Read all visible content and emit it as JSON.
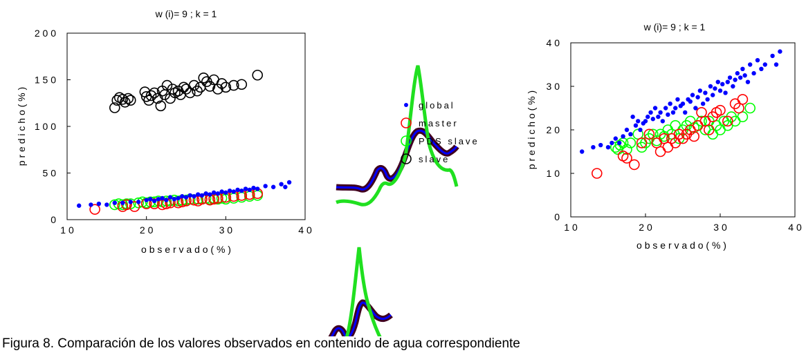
{
  "caption": "Figura 8. Comparación de los valores observados en contenido de agua correspondiente",
  "legend": [
    "global",
    "master",
    "PDS slave",
    "slave"
  ],
  "colors": {
    "global": "#0000ff",
    "master": "#ff0000",
    "pds": "#00ff00",
    "slave": "#000000",
    "spectra_dark": "#400020"
  },
  "chart_data": [
    {
      "type": "scatter",
      "title": "w (i)= 9 ;   k = 1",
      "xlabel": "o b s e r v a d o  ( % )",
      "ylabel": "p r e d i c h o  ( % )",
      "xlim": [
        10,
        40
      ],
      "ylim": [
        0,
        200
      ],
      "xticks": [
        "1 0",
        "2 0",
        "3 0",
        "4 0"
      ],
      "yticks": [
        "0",
        "5 0",
        "1 0 0",
        "1 5 0",
        "2 0 0"
      ],
      "series": [
        {
          "name": "global",
          "marker": "dot",
          "points": [
            [
              11.5,
              15
            ],
            [
              13,
              16
            ],
            [
              14,
              17
            ],
            [
              15,
              16
            ],
            [
              16,
              18
            ],
            [
              17,
              18
            ],
            [
              18,
              19
            ],
            [
              19,
              19
            ],
            [
              20,
              21
            ],
            [
              20.5,
              22
            ],
            [
              21,
              20
            ],
            [
              21.5,
              22
            ],
            [
              22,
              23
            ],
            [
              22.5,
              21
            ],
            [
              23,
              24
            ],
            [
              23.5,
              22
            ],
            [
              24,
              23
            ],
            [
              24.5,
              25
            ],
            [
              25,
              24
            ],
            [
              25.5,
              26
            ],
            [
              26,
              25
            ],
            [
              26.5,
              27
            ],
            [
              27,
              26
            ],
            [
              27.5,
              28
            ],
            [
              28,
              27
            ],
            [
              28.5,
              29
            ],
            [
              29,
              28
            ],
            [
              29.5,
              30
            ],
            [
              30,
              29
            ],
            [
              30.5,
              31
            ],
            [
              31,
              30
            ],
            [
              31.5,
              32
            ],
            [
              32,
              31
            ],
            [
              32.5,
              33
            ],
            [
              33,
              32
            ],
            [
              33.5,
              34
            ],
            [
              34,
              33
            ],
            [
              35,
              36
            ],
            [
              36,
              35
            ],
            [
              37,
              38
            ],
            [
              37.5,
              35
            ],
            [
              38,
              40
            ]
          ]
        },
        {
          "name": "master",
          "marker": "circle",
          "points": [
            [
              13.5,
              11
            ],
            [
              17,
              14
            ],
            [
              17.5,
              16
            ],
            [
              18.5,
              14
            ],
            [
              20,
              17
            ],
            [
              21,
              17
            ],
            [
              22,
              16
            ],
            [
              22.5,
              17
            ],
            [
              23,
              18
            ],
            [
              24,
              18
            ],
            [
              24.5,
              19
            ],
            [
              25,
              20
            ],
            [
              26,
              21
            ],
            [
              26.5,
              20
            ],
            [
              27,
              22
            ],
            [
              28,
              21
            ],
            [
              28.5,
              22
            ],
            [
              29,
              23
            ],
            [
              30,
              24
            ],
            [
              31,
              25
            ],
            [
              32,
              26
            ],
            [
              33,
              27
            ],
            [
              34,
              28
            ]
          ]
        },
        {
          "name": "PDS slave",
          "marker": "circle",
          "points": [
            [
              16,
              16
            ],
            [
              16.5,
              17
            ],
            [
              17,
              16
            ],
            [
              17.5,
              17
            ],
            [
              18,
              17
            ],
            [
              19,
              18
            ],
            [
              19.5,
              19
            ],
            [
              20,
              18
            ],
            [
              20.5,
              19
            ],
            [
              21,
              19
            ],
            [
              21.5,
              20
            ],
            [
              22,
              19
            ],
            [
              22.5,
              20
            ],
            [
              23,
              20
            ],
            [
              23.5,
              21
            ],
            [
              24,
              20
            ],
            [
              24.5,
              21
            ],
            [
              25,
              21
            ],
            [
              25.5,
              22
            ],
            [
              26,
              21
            ],
            [
              26.5,
              22
            ],
            [
              27,
              22
            ],
            [
              27.5,
              23
            ],
            [
              28,
              22
            ],
            [
              28.5,
              23
            ],
            [
              29,
              22
            ],
            [
              29.5,
              23
            ],
            [
              30,
              22
            ],
            [
              31,
              23
            ],
            [
              32,
              24
            ],
            [
              33,
              25
            ],
            [
              34,
              26
            ]
          ]
        },
        {
          "name": "slave",
          "marker": "circle",
          "points": [
            [
              16,
              120
            ],
            [
              16.3,
              128
            ],
            [
              16.6,
              131
            ],
            [
              17,
              129
            ],
            [
              17.3,
              126
            ],
            [
              17.7,
              130
            ],
            [
              18,
              128
            ],
            [
              19.8,
              137
            ],
            [
              20,
              132
            ],
            [
              20.3,
              128
            ],
            [
              20.6,
              133
            ],
            [
              21,
              136
            ],
            [
              21.4,
              130
            ],
            [
              21.8,
              122
            ],
            [
              22,
              138
            ],
            [
              22.3,
              134
            ],
            [
              22.6,
              144
            ],
            [
              23,
              130
            ],
            [
              23.3,
              140
            ],
            [
              23.6,
              136
            ],
            [
              24,
              138
            ],
            [
              24.3,
              134
            ],
            [
              24.7,
              142
            ],
            [
              25,
              140
            ],
            [
              25.5,
              136
            ],
            [
              26,
              144
            ],
            [
              26.4,
              138
            ],
            [
              26.8,
              142
            ],
            [
              27.2,
              152
            ],
            [
              27.6,
              148
            ],
            [
              28,
              143
            ],
            [
              28.5,
              150
            ],
            [
              29,
              140
            ],
            [
              29.5,
              146
            ],
            [
              30,
              142
            ],
            [
              31,
              144
            ],
            [
              32,
              145
            ],
            [
              34,
              155
            ]
          ]
        }
      ]
    },
    {
      "type": "scatter",
      "title": "w (i)= 9 ;   k = 1",
      "xlabel": "o b s e r v a d o  ( % )",
      "ylabel": "p r e d i c h o  ( % )",
      "xlim": [
        10,
        40
      ],
      "ylim": [
        0,
        40
      ],
      "xticks": [
        "1 0",
        "2 0",
        "3 0",
        "4 0"
      ],
      "yticks": [
        "0",
        "1 0",
        "2 0",
        "3 0",
        "4 0"
      ],
      "series": [
        {
          "name": "global",
          "marker": "dot",
          "points": [
            [
              11.5,
              15
            ],
            [
              13,
              16
            ],
            [
              14,
              16.5
            ],
            [
              15,
              16
            ],
            [
              15.5,
              17
            ],
            [
              16,
              18
            ],
            [
              16.5,
              17
            ],
            [
              17,
              18.5
            ],
            [
              17.5,
              20
            ],
            [
              18,
              19
            ],
            [
              18.3,
              23
            ],
            [
              18.7,
              21
            ],
            [
              19,
              22
            ],
            [
              19.3,
              20
            ],
            [
              19.7,
              21.5
            ],
            [
              20,
              22
            ],
            [
              20.3,
              23
            ],
            [
              20.7,
              24
            ],
            [
              21,
              22.5
            ],
            [
              21.3,
              25
            ],
            [
              21.7,
              23
            ],
            [
              22,
              24
            ],
            [
              22.3,
              22
            ],
            [
              22.7,
              25
            ],
            [
              23,
              23.5
            ],
            [
              23.3,
              26
            ],
            [
              23.7,
              24
            ],
            [
              24,
              25
            ],
            [
              24.3,
              27
            ],
            [
              24.7,
              25.5
            ],
            [
              25,
              26
            ],
            [
              25.3,
              24
            ],
            [
              25.7,
              27
            ],
            [
              26,
              26.5
            ],
            [
              26.3,
              28
            ],
            [
              26.7,
              25
            ],
            [
              27,
              27.5
            ],
            [
              27.3,
              29
            ],
            [
              27.7,
              26
            ],
            [
              28,
              28.5
            ],
            [
              28.3,
              27
            ],
            [
              28.7,
              30
            ],
            [
              29,
              28
            ],
            [
              29.3,
              29.5
            ],
            [
              29.7,
              31
            ],
            [
              30,
              29
            ],
            [
              30.3,
              30.5
            ],
            [
              30.7,
              28.5
            ],
            [
              31,
              31
            ],
            [
              31.3,
              32
            ],
            [
              31.7,
              30
            ],
            [
              32,
              31.5
            ],
            [
              32.3,
              33
            ],
            [
              32.7,
              32
            ],
            [
              33,
              34
            ],
            [
              33.3,
              32.5
            ],
            [
              33.7,
              31
            ],
            [
              34,
              35
            ],
            [
              34.5,
              33
            ],
            [
              35,
              36
            ],
            [
              35.5,
              34
            ],
            [
              36,
              35
            ],
            [
              37,
              37
            ],
            [
              37.5,
              35
            ],
            [
              38,
              38
            ]
          ]
        },
        {
          "name": "master",
          "marker": "circle",
          "points": [
            [
              13.5,
              10
            ],
            [
              17,
              14
            ],
            [
              17.5,
              13.5
            ],
            [
              18.5,
              12
            ],
            [
              19.5,
              17
            ],
            [
              20.5,
              19
            ],
            [
              21.5,
              17
            ],
            [
              22,
              15
            ],
            [
              22.5,
              18
            ],
            [
              23,
              16
            ],
            [
              23.5,
              18
            ],
            [
              24,
              17
            ],
            [
              24.5,
              19
            ],
            [
              25,
              18
            ],
            [
              25.5,
              19
            ],
            [
              26,
              20
            ],
            [
              26.5,
              18.5
            ],
            [
              27,
              21
            ],
            [
              27.5,
              24
            ],
            [
              28,
              22
            ],
            [
              28.5,
              20
            ],
            [
              29,
              23
            ],
            [
              29.5,
              24
            ],
            [
              30,
              24.5
            ],
            [
              31,
              22
            ],
            [
              32,
              26
            ],
            [
              32.5,
              25
            ],
            [
              33,
              27
            ]
          ]
        },
        {
          "name": "PDS slave",
          "marker": "circle",
          "points": [
            [
              16,
              16
            ],
            [
              16.3,
              15.5
            ],
            [
              16.6,
              16.5
            ],
            [
              17,
              17
            ],
            [
              17.5,
              15.5
            ],
            [
              18,
              17
            ],
            [
              19,
              19
            ],
            [
              19.5,
              16
            ],
            [
              20,
              17
            ],
            [
              20.5,
              18
            ],
            [
              21,
              19
            ],
            [
              21.5,
              17.5
            ],
            [
              22,
              19
            ],
            [
              22.5,
              18.5
            ],
            [
              23,
              20
            ],
            [
              23.5,
              19
            ],
            [
              24,
              21
            ],
            [
              24.5,
              18
            ],
            [
              25,
              20
            ],
            [
              25.5,
              21
            ],
            [
              26,
              22
            ],
            [
              26.5,
              20.5
            ],
            [
              27,
              21
            ],
            [
              27.5,
              22
            ],
            [
              28,
              20
            ],
            [
              28.5,
              22
            ],
            [
              29,
              19
            ],
            [
              29.5,
              21
            ],
            [
              30,
              20
            ],
            [
              30.5,
              22
            ],
            [
              31,
              21
            ],
            [
              31.5,
              23
            ],
            [
              32,
              22
            ],
            [
              33,
              23
            ],
            [
              34,
              25
            ]
          ]
        }
      ]
    }
  ]
}
